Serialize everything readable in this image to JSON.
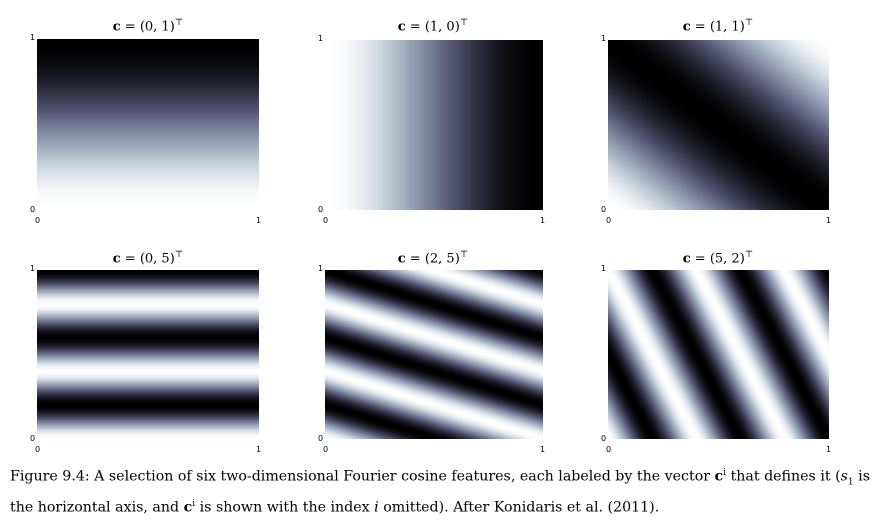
{
  "figure": {
    "panels": [
      {
        "label": "c = (0,1)",
        "title_bold": "c",
        "title_rest": " = (0, 1)",
        "title_sup": "⊤",
        "c": [
          0,
          1
        ],
        "y_top": "1",
        "y_bottom": "0",
        "x_left": "0",
        "x_right": "1"
      },
      {
        "label": "c = (1,0)",
        "title_bold": "c",
        "title_rest": " = (1, 0)",
        "title_sup": "⊤",
        "c": [
          1,
          0
        ],
        "y_top": "1",
        "y_bottom": "0",
        "x_left": "0",
        "x_right": "1"
      },
      {
        "label": "c = (1,1)",
        "title_bold": "c",
        "title_rest": " = (1, 1)",
        "title_sup": "⊤",
        "c": [
          1,
          1
        ],
        "y_top": "1",
        "y_bottom": "0",
        "x_left": "0",
        "x_right": "1"
      },
      {
        "label": "c = (0,5)",
        "title_bold": "c",
        "title_rest": " = (0, 5)",
        "title_sup": "⊤",
        "c": [
          0,
          5
        ],
        "y_top": "1",
        "y_bottom": "0",
        "x_left": "0",
        "x_right": "1"
      },
      {
        "label": "c = (2,5)",
        "title_bold": "c",
        "title_rest": " = (2, 5)",
        "title_sup": "⊤",
        "c": [
          2,
          5
        ],
        "y_top": "1",
        "y_bottom": "0",
        "x_left": "0",
        "x_right": "1"
      },
      {
        "label": "c = (5,2)",
        "title_bold": "c",
        "title_rest": " = (5, 2)",
        "title_sup": "⊤",
        "c": [
          5,
          2
        ],
        "y_top": "1",
        "y_bottom": "0",
        "x_left": "0",
        "x_right": "1"
      }
    ],
    "colormap": "bone",
    "caption": {
      "prefix": "Figure 9.4:",
      "text_1": " A selection of six two-dimensional Fourier cosine features, each labeled by the vector ",
      "vec": "c",
      "vec_sup": "i",
      "text_2": " that defines it (",
      "s1": "s",
      "s1_sub": "1",
      "text_3": " is the horizontal axis, and ",
      "vec2": "c",
      "vec2_sup": "i",
      "text_4": " is shown with the index ",
      "idx": "i",
      "text_5": " omitted). After Konidaris et al. (2011)."
    }
  }
}
